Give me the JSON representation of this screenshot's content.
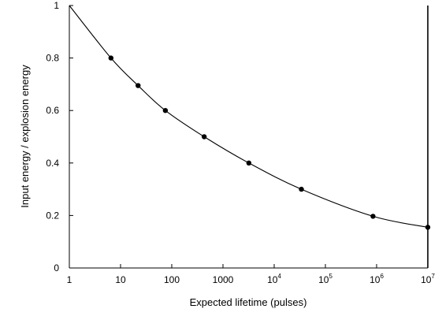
{
  "chart_data": {
    "type": "scatter",
    "title": "",
    "xlabel": "Expected lifetime (pulses)",
    "ylabel": "Input energy / explosion energy",
    "xscale": "log",
    "xlim": [
      1,
      10000000
    ],
    "ylim": [
      0,
      1
    ],
    "grid": false,
    "legend": "none",
    "x_ticks": [
      {
        "value": 1,
        "label": "1"
      },
      {
        "value": 10,
        "label": "10"
      },
      {
        "value": 100,
        "label": "100"
      },
      {
        "value": 1000,
        "label": "1000"
      },
      {
        "value": 10000,
        "label": "10",
        "sup": "4"
      },
      {
        "value": 100000,
        "label": "10",
        "sup": "5"
      },
      {
        "value": 1000000,
        "label": "10",
        "sup": "6"
      },
      {
        "value": 10000000,
        "label": "10",
        "sup": "7"
      }
    ],
    "y_ticks": [
      {
        "value": 0,
        "label": "0"
      },
      {
        "value": 0.2,
        "label": "0.2"
      },
      {
        "value": 0.4,
        "label": "0.4"
      },
      {
        "value": 0.6,
        "label": "0.6"
      },
      {
        "value": 0.8,
        "label": "0.8"
      },
      {
        "value": 1,
        "label": "1"
      }
    ],
    "series": [
      {
        "style": "markers",
        "color": "#000000",
        "x": [
          6.5,
          22,
          75,
          430,
          3200,
          34000,
          850000,
          10000000
        ],
        "y": [
          0.8,
          0.695,
          0.6,
          0.5,
          0.4,
          0.3,
          0.197,
          0.155
        ]
      },
      {
        "style": "line",
        "color": "#000000",
        "x": [
          1,
          6.5,
          22,
          75,
          430,
          3200,
          34000,
          850000,
          10000000
        ],
        "y": [
          1.0,
          0.8,
          0.695,
          0.6,
          0.5,
          0.4,
          0.3,
          0.197,
          0.155
        ]
      }
    ]
  }
}
